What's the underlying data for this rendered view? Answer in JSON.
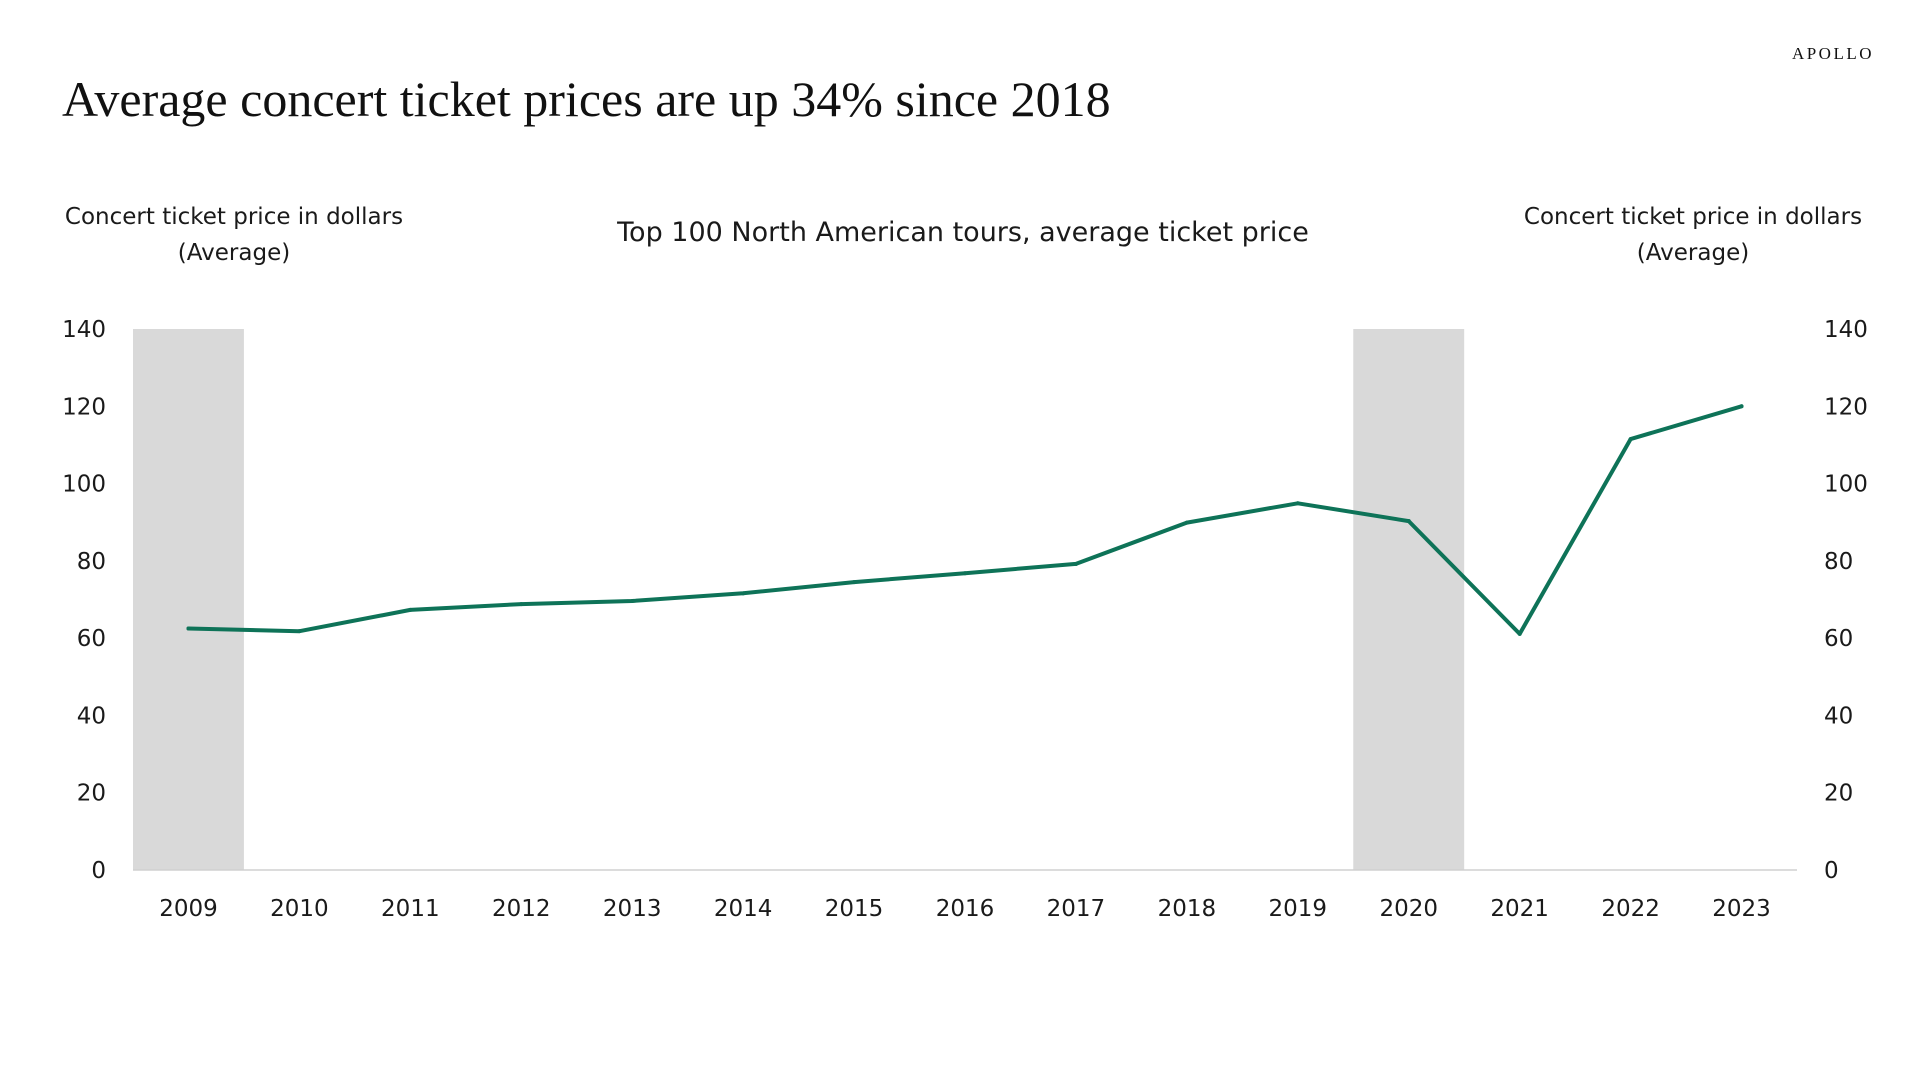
{
  "brand": "APOLLO",
  "headline": "Average concert ticket prices are up 34% since 2018",
  "chart_data": {
    "type": "line",
    "title": "Top 100 North American tours, average ticket price",
    "ylabel_left": [
      "Concert ticket price in dollars",
      "(Average)"
    ],
    "ylabel_right": [
      "Concert ticket price in dollars",
      "(Average)"
    ],
    "ylim": [
      0,
      140
    ],
    "yticks": [
      0,
      20,
      40,
      60,
      80,
      100,
      120,
      140
    ],
    "categories": [
      "2009",
      "2010",
      "2011",
      "2012",
      "2013",
      "2014",
      "2015",
      "2016",
      "2017",
      "2018",
      "2019",
      "2020",
      "2021",
      "2022",
      "2023"
    ],
    "series": [
      {
        "values": [
          62.5,
          61.8,
          67.3,
          68.8,
          69.6,
          71.6,
          74.5,
          76.8,
          79.2,
          89.9,
          94.9,
          90.3,
          61.1,
          111.5,
          120
        ]
      }
    ],
    "shaded_periods": [
      "2009",
      "2020"
    ],
    "grid": false,
    "line_color": "#0e7358",
    "shade_color": "#d9d9d9"
  }
}
